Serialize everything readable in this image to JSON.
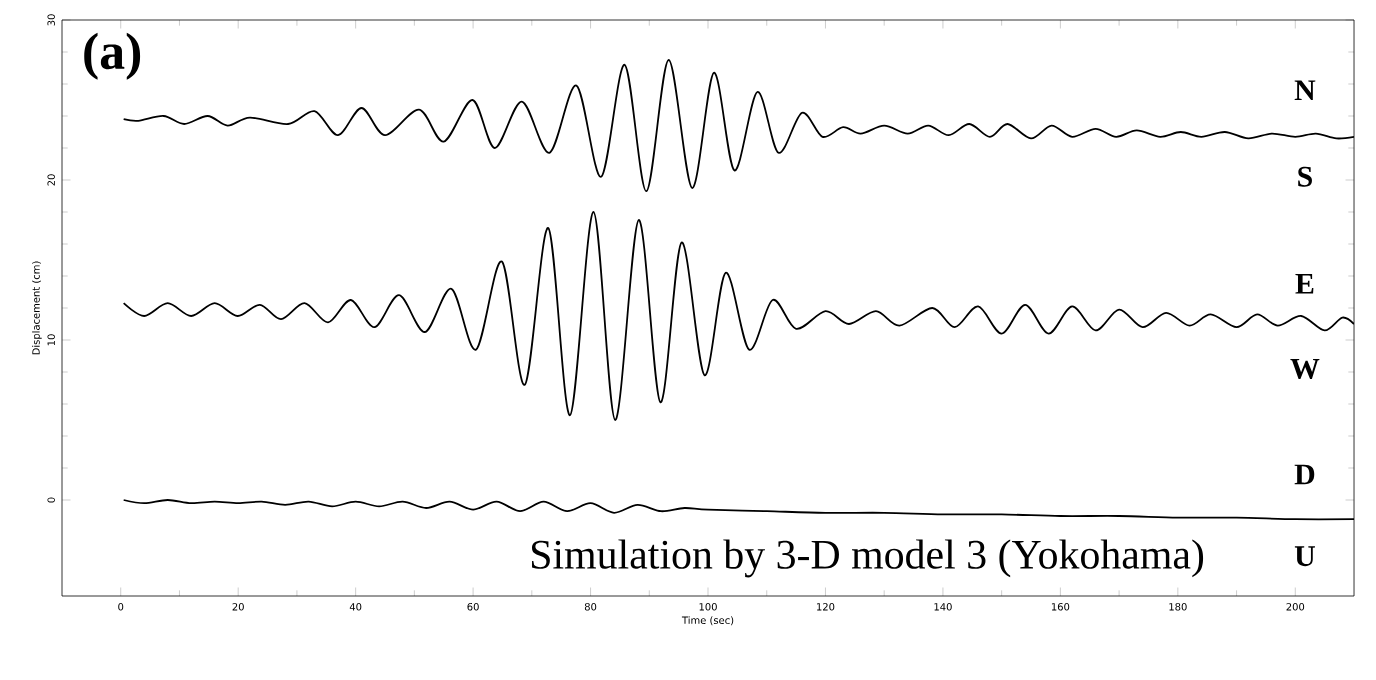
{
  "chart_data": {
    "type": "line",
    "title": "(a)",
    "xlabel": "Time (sec)",
    "ylabel": "Displacement (cm)",
    "xlim": [
      -10,
      210
    ],
    "xticks": [
      0,
      20,
      40,
      60,
      80,
      100,
      120,
      140,
      160,
      180,
      200
    ],
    "ylim": [
      -6,
      30
    ],
    "yticks": [
      0,
      10,
      20,
      30
    ],
    "grid": false,
    "marker": "none",
    "line_style": "solid",
    "series": [
      {
        "color": "#000000",
        "x": [
          0.5,
          3,
          7.3,
          10.8,
          14.8,
          18.2,
          22,
          28.5,
          33,
          37,
          41,
          45,
          50.8,
          55,
          59.9,
          63.7,
          68.3,
          73,
          77.6,
          81.8,
          85.8,
          89.5,
          93.3,
          97.3,
          101,
          104.5,
          108.4,
          112,
          116,
          119.5,
          123,
          126,
          130,
          134,
          137.5,
          141,
          144.5,
          148,
          151,
          155,
          158.5,
          162,
          166,
          169.5,
          173,
          177,
          180.5,
          184,
          188,
          192,
          196,
          200,
          203.5,
          207,
          210
        ],
        "values": [
          23.8,
          23.7,
          24.0,
          23.5,
          24.0,
          23.4,
          23.9,
          23.5,
          24.3,
          22.8,
          24.5,
          22.8,
          24.4,
          22.4,
          25.0,
          22.0,
          24.9,
          21.7,
          25.9,
          20.2,
          27.2,
          19.3,
          27.5,
          19.5,
          26.7,
          20.6,
          25.5,
          21.7,
          24.2,
          22.7,
          23.3,
          22.9,
          23.4,
          22.9,
          23.4,
          22.8,
          23.5,
          22.7,
          23.5,
          22.6,
          23.4,
          22.7,
          23.2,
          22.7,
          23.1,
          22.7,
          23.0,
          22.7,
          23.0,
          22.6,
          22.9,
          22.7,
          22.9,
          22.6,
          22.7
        ]
      },
      {
        "color": "#000000",
        "x": [
          0.5,
          4,
          8,
          12,
          16,
          19.9,
          23.7,
          27.3,
          31.3,
          35.3,
          39.2,
          43.2,
          47.4,
          51.8,
          56.3,
          60.5,
          64.9,
          68.8,
          72.8,
          76.5,
          80.5,
          84.2,
          88.2,
          91.9,
          95.5,
          99.4,
          103,
          107,
          111,
          115,
          120,
          124,
          128.6,
          132.6,
          138.2,
          142,
          146,
          150,
          154,
          158,
          162,
          166,
          170,
          174,
          178,
          182,
          185.6,
          190,
          193.5,
          197,
          201,
          205,
          208,
          210
        ],
        "values": [
          12.3,
          11.5,
          12.3,
          11.5,
          12.3,
          11.5,
          12.2,
          11.3,
          12.3,
          11.1,
          12.5,
          10.8,
          12.8,
          10.5,
          13.2,
          9.4,
          14.9,
          7.2,
          17.0,
          5.3,
          18.0,
          5.0,
          17.5,
          6.1,
          16.1,
          7.8,
          14.2,
          9.4,
          12.5,
          10.7,
          11.8,
          11.0,
          11.8,
          10.9,
          12.0,
          10.8,
          12.1,
          10.4,
          12.2,
          10.4,
          12.1,
          10.6,
          11.9,
          10.8,
          11.7,
          10.9,
          11.6,
          10.8,
          11.6,
          10.9,
          11.5,
          10.6,
          11.4,
          11.0
        ]
      },
      {
        "color": "#000000",
        "x": [
          0.5,
          4,
          8,
          12,
          16,
          20,
          24,
          28,
          32,
          36,
          40,
          44,
          48,
          52,
          56,
          60,
          64,
          68,
          72,
          76,
          80,
          84,
          88,
          92,
          96,
          100,
          110,
          120,
          130,
          140,
          150,
          160,
          170,
          180,
          190,
          200,
          210
        ],
        "values": [
          0.0,
          -0.2,
          0.0,
          -0.2,
          -0.1,
          -0.2,
          -0.1,
          -0.3,
          -0.1,
          -0.4,
          -0.1,
          -0.4,
          -0.1,
          -0.5,
          -0.1,
          -0.6,
          -0.1,
          -0.7,
          -0.1,
          -0.7,
          -0.2,
          -0.8,
          -0.3,
          -0.7,
          -0.5,
          -0.6,
          -0.7,
          -0.8,
          -0.8,
          -0.9,
          -0.9,
          -1.0,
          -1.0,
          -1.1,
          -1.1,
          -1.2,
          -1.2
        ]
      }
    ],
    "annotations": [
      "Simulation by 3-D model 3 (Yokohama)",
      "N",
      "S",
      "E",
      "W",
      "D",
      "U"
    ]
  }
}
